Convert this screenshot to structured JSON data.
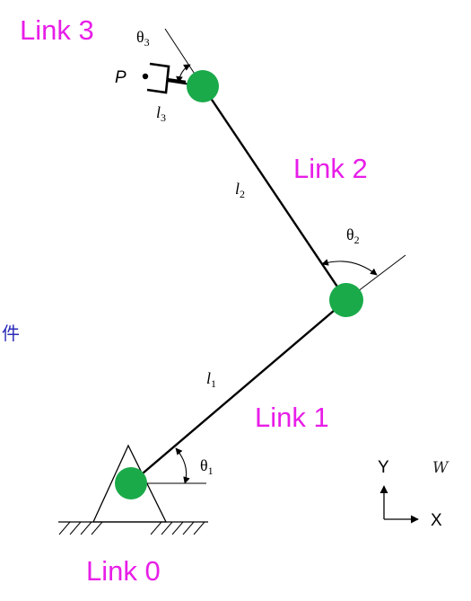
{
  "labels": {
    "link0": "Link 0",
    "link1": "Link 1",
    "link2": "Link 2",
    "link3": "Link 3",
    "theta1_sym": "θ",
    "theta1_sub": "1",
    "theta2_sym": "θ",
    "theta2_sub": "2",
    "theta3_sym": "θ",
    "theta3_sub": "3",
    "l1_sym": "l",
    "l1_sub": "1",
    "l2_sym": "l",
    "l2_sub": "2",
    "l3_sym": "l",
    "l3_sub": "3",
    "point_p": "P",
    "axis_x": "X",
    "axis_y": "Y",
    "world_frame": "W",
    "side_glyph": "件"
  },
  "colors": {
    "joint": "#1aaa4a",
    "link_label": "#e81ee8",
    "line": "#000000",
    "side_glyph": "#2b2bb8"
  }
}
